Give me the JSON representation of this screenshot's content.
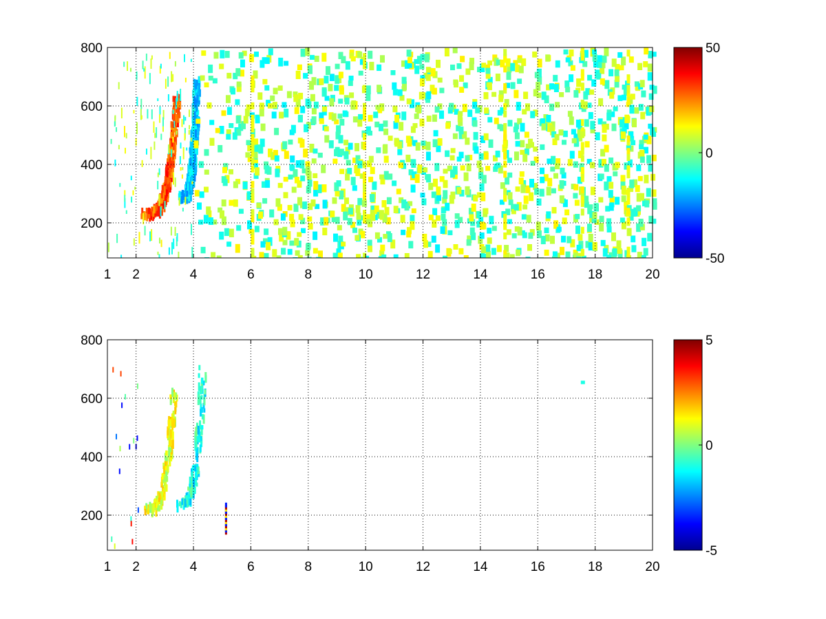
{
  "chart_data": [
    {
      "type": "heatmap",
      "xticks": [
        "1",
        "2",
        "4",
        "6",
        "8",
        "10",
        "12",
        "14",
        "16",
        "18",
        "20"
      ],
      "xlim": [
        1,
        20
      ],
      "yticks": [
        "200",
        "400",
        "600",
        "800"
      ],
      "ylim": [
        80,
        800
      ],
      "grid": true,
      "colorbar": {
        "ticks": [
          "50",
          "0",
          "-50"
        ],
        "range": [
          -50,
          50
        ],
        "colormap": "jet"
      },
      "features": [
        {
          "x": [
            2.2,
            3.4
          ],
          "y": [
            240,
            640
          ],
          "value_range": [
            20,
            40
          ],
          "shape": "arc"
        },
        {
          "x": [
            3.5,
            4.1
          ],
          "y": [
            300,
            700
          ],
          "value_range": [
            -25,
            -10
          ],
          "shape": "arc"
        },
        {
          "x": [
            1,
            20
          ],
          "value_range": [
            -15,
            15
          ],
          "shape": "scattered"
        }
      ]
    },
    {
      "type": "heatmap",
      "xticks": [
        "1",
        "2",
        "4",
        "6",
        "8",
        "10",
        "12",
        "14",
        "16",
        "18",
        "20"
      ],
      "xlim": [
        1,
        20
      ],
      "yticks": [
        "200",
        "400",
        "600",
        "800"
      ],
      "ylim": [
        80,
        800
      ],
      "grid": true,
      "colorbar": {
        "ticks": [
          "5",
          "0",
          "-5"
        ],
        "range": [
          -5,
          5
        ],
        "colormap": "jet"
      },
      "features": [
        {
          "x": [
            2.2,
            3.3
          ],
          "y": [
            230,
            650
          ],
          "value_range": [
            0,
            2
          ],
          "shape": "arc"
        },
        {
          "x": [
            3.4,
            4.3
          ],
          "y": [
            250,
            720
          ],
          "value_range": [
            -2,
            0
          ],
          "shape": "arc"
        },
        {
          "x": [
            5.1
          ],
          "y": [
            150,
            250
          ],
          "value_range": [
            -5,
            5
          ],
          "shape": "spike"
        },
        {
          "x": [
            17.5
          ],
          "y": [
            660
          ],
          "value_range": [
            -1,
            -1
          ],
          "shape": "point"
        }
      ]
    }
  ]
}
